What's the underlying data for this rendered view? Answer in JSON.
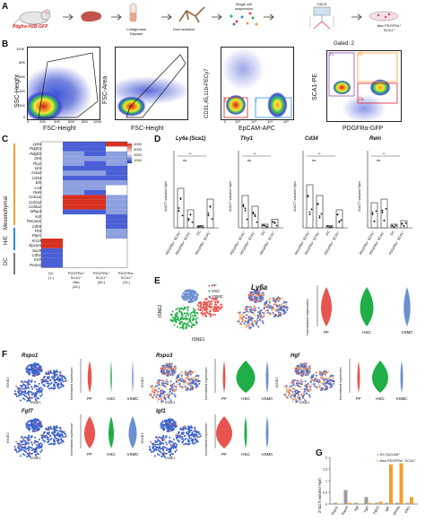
{
  "panels": {
    "A": {
      "label": "A",
      "mouse": "Pdgfra-H2B-GFP",
      "steps": [
        "Collagenase\nDispase",
        "Duct isolation",
        "Single cell\nsuspension",
        "FACS"
      ],
      "result": "Msc PDGFRα⁺\nSCA1⁺"
    },
    "B": {
      "label": "B",
      "axes": [
        {
          "x": "FSC-Height",
          "y": "SSC-Height"
        },
        {
          "x": "FSC-Height",
          "y": "FSC-Area"
        },
        {
          "x": "EpCAM-APC",
          "y": "CD31,45,11b-PECy7"
        },
        {
          "x": "PDGFRα-GFP",
          "y": "SCA1-PE"
        }
      ],
      "gate_label": "Gated: 2",
      "gates": [
        "1",
        "2",
        "2c",
        "2b",
        "2a"
      ],
      "xticks1": [
        "0",
        "20K",
        "40K",
        "60K",
        "80K",
        "100K"
      ],
      "yticks1": [
        "0",
        "20K",
        "40K",
        "60K",
        "80K",
        "100K"
      ],
      "xticks3": [
        "0",
        "10²",
        "10³",
        "10⁴",
        "10⁵"
      ],
      "yticks3": [
        "0",
        "10²",
        "10³",
        "10⁴",
        "10⁵"
      ]
    },
    "C": {
      "label": "C",
      "genes": [
        "Ly6a",
        "Pdgfra",
        "Pdgfrb",
        "Des",
        "Thy1",
        "Vim",
        "Acta2",
        "Cd34",
        "Eln",
        "Lrat",
        "Reln",
        "Col1a1",
        "Col1a2",
        "Col3a1",
        "Mfap4",
        "Kdr",
        "Pecam1",
        "Cdh5",
        "Flt4",
        "Ptprc",
        "Krt19",
        "Epcam",
        "Sox9",
        "Cdh1",
        "Krt7",
        "Prom1"
      ],
      "groups": [
        "Mesenchymal",
        "H/E",
        "DC"
      ],
      "columns": [
        "DC\n(1.)",
        "PDGFRα⁺\nSCA1⁺\nMsc\n(2a.)",
        "PDGFRα⁺\nSCA1⁺\n(2b.)",
        "PDGFRα⁻\nSCA1⁺\n(2c.)"
      ],
      "scale": [
        "4000",
        "3000",
        "2000",
        "1000"
      ]
    },
    "D": {
      "label": "D",
      "titles": [
        "Ly6a (Sca1)",
        "Thy1",
        "Cd34",
        "Reln"
      ],
      "ylabel": "2/ΔCT values/ Hprt",
      "ns": "ns",
      "sig": "**",
      "cats": [
        "PDGFRα⁺ SCA1⁺",
        "PDGFRα⁺ SCA1⁻",
        "DC",
        "PDGFRα⁻ SCA1⁺"
      ]
    },
    "E": {
      "label": "E",
      "gene": "Ly6a",
      "legend": [
        "PF",
        "HSC",
        "VSMC"
      ],
      "tsne2": "tSNE2",
      "tsne1": "tSNE1",
      "norm": "Normalized expression"
    },
    "F": {
      "label": "F",
      "genes": [
        "Rspo1",
        "Rspo3",
        "Hgf",
        "Fgf7",
        "Igf1"
      ],
      "cats": [
        "PF",
        "HSC",
        "VSMC"
      ],
      "tsne2": "tSNE2",
      "tsne1": "tSNE1",
      "norm": "Normalized expression"
    },
    "G": {
      "label": "G",
      "ylabel": "2^ΔCT values/ Hprt",
      "legend": [
        "DC EpCAM⁺",
        "Msc PDGFRα⁺ SCA1⁺"
      ],
      "cats": [
        "Rspo1",
        "Rspo3",
        "Hgf",
        "Fgf7",
        "Fgf10",
        "Igf1",
        "Wnt5a",
        "Dkk1"
      ],
      "yticks": [
        "0",
        "0.5",
        "1",
        "1.5",
        "2"
      ]
    }
  },
  "colors": {
    "pf": "#e8554f",
    "hsc": "#1fae47",
    "vsmc": "#6c8fd1",
    "dc": "#9b9b9b",
    "msc": "#f0a030",
    "heat_hi": "#d7301f",
    "heat_lo": "#1c2db5"
  }
}
